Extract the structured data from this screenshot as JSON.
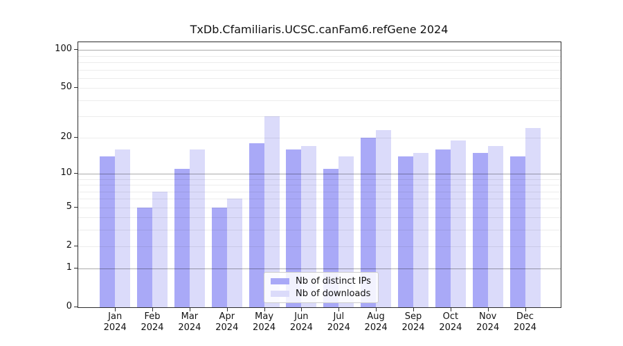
{
  "chart_data": {
    "type": "bar",
    "title": "TxDb.Cfamiliaris.UCSC.canFam6.refGene 2024",
    "categories": [
      "Jan 2024",
      "Feb 2024",
      "Mar 2024",
      "Apr 2024",
      "May 2024",
      "Jun 2024",
      "Jul 2024",
      "Aug 2024",
      "Sep 2024",
      "Oct 2024",
      "Nov 2024",
      "Dec 2024"
    ],
    "series": [
      {
        "key": "distinct-ips",
        "name": "Nb of distinct IPs",
        "color": "#a9a9f7",
        "values": [
          14,
          5,
          11,
          5,
          18,
          16,
          11,
          20,
          14,
          16,
          15,
          14
        ]
      },
      {
        "key": "downloads",
        "name": "Nb of downloads",
        "color": "#dbdbfa",
        "values": [
          16,
          7,
          16,
          6,
          30,
          17,
          14,
          23,
          15,
          19,
          17,
          24
        ]
      }
    ],
    "xlabel": "",
    "ylabel": "",
    "yscale": "log1p",
    "ylim": [
      0,
      116
    ],
    "y_tick_values": [
      0,
      1,
      2,
      5,
      10,
      20,
      50,
      100
    ],
    "y_tick_labels": [
      "0",
      "1",
      "2",
      "5",
      "10",
      "20",
      "50",
      "100"
    ],
    "grid_major_values": [
      1,
      10,
      100
    ],
    "grid_minor_values": [
      2,
      3,
      4,
      5,
      6,
      7,
      8,
      9,
      20,
      30,
      40,
      50,
      60,
      70,
      80,
      90
    ],
    "grid": "on",
    "legend_position": "lower center"
  }
}
